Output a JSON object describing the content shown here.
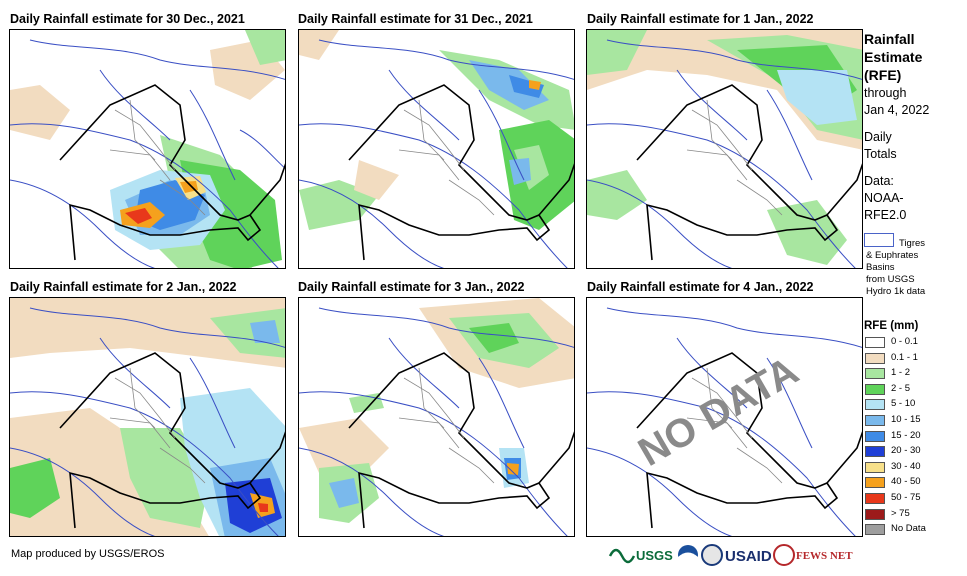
{
  "panels": [
    {
      "title": "Daily Rainfall estimate for 30 Dec., 2021"
    },
    {
      "title": "Daily Rainfall estimate for 31 Dec., 2021"
    },
    {
      "title": "Daily Rainfall estimate for 1 Jan., 2022"
    },
    {
      "title": "Daily Rainfall estimate for 2 Jan., 2022"
    },
    {
      "title": "Daily Rainfall estimate for 3 Jan., 2022"
    },
    {
      "title": "Daily Rainfall estimate for 4 Jan., 2022"
    }
  ],
  "no_data_text": "NO DATA",
  "sidebar": {
    "title_1": "Rainfall",
    "title_2": "Estimate",
    "title_3": "(RFE)",
    "through_1": "through",
    "through_2": "Jan 4, 2022",
    "totals_1": "Daily",
    "totals_2": "Totals",
    "data_1": "Data:",
    "data_2": "NOAA-",
    "data_3": "RFE2.0",
    "basin_1": "Tigres",
    "basin_2": "& Euphrates",
    "basin_3": "Basins",
    "basin_4": "from USGS",
    "basin_5": "Hydro 1k data"
  },
  "legend": {
    "title": "RFE (mm)",
    "items": [
      {
        "label": "0 - 0.1",
        "color": "#ffffff"
      },
      {
        "label": "0.1 - 1",
        "color": "#f2dcc0"
      },
      {
        "label": "1 - 2",
        "color": "#a8e6a0"
      },
      {
        "label": "2 - 5",
        "color": "#5fd35a"
      },
      {
        "label": "5 - 10",
        "color": "#b4e3f4"
      },
      {
        "label": "10 - 15",
        "color": "#7ab9ec"
      },
      {
        "label": "15 - 20",
        "color": "#3f8be6"
      },
      {
        "label": "20 - 30",
        "color": "#1f3fd6"
      },
      {
        "label": "30 - 40",
        "color": "#f7e08a"
      },
      {
        "label": "40 - 50",
        "color": "#f5a11d"
      },
      {
        "label": "50 - 75",
        "color": "#e8381b"
      },
      {
        "label": "> 75",
        "color": "#9c1a1a"
      },
      {
        "label": "No Data",
        "color": "#9e9e9e"
      }
    ]
  },
  "footer": "Map produced by USGS/EROS",
  "logos": {
    "usgs": "USGS",
    "usaid": "USAID",
    "fews": "FEWS NET"
  },
  "colors": {
    "country": "#000000",
    "province": "#888888",
    "river": "#3a4fc4"
  }
}
